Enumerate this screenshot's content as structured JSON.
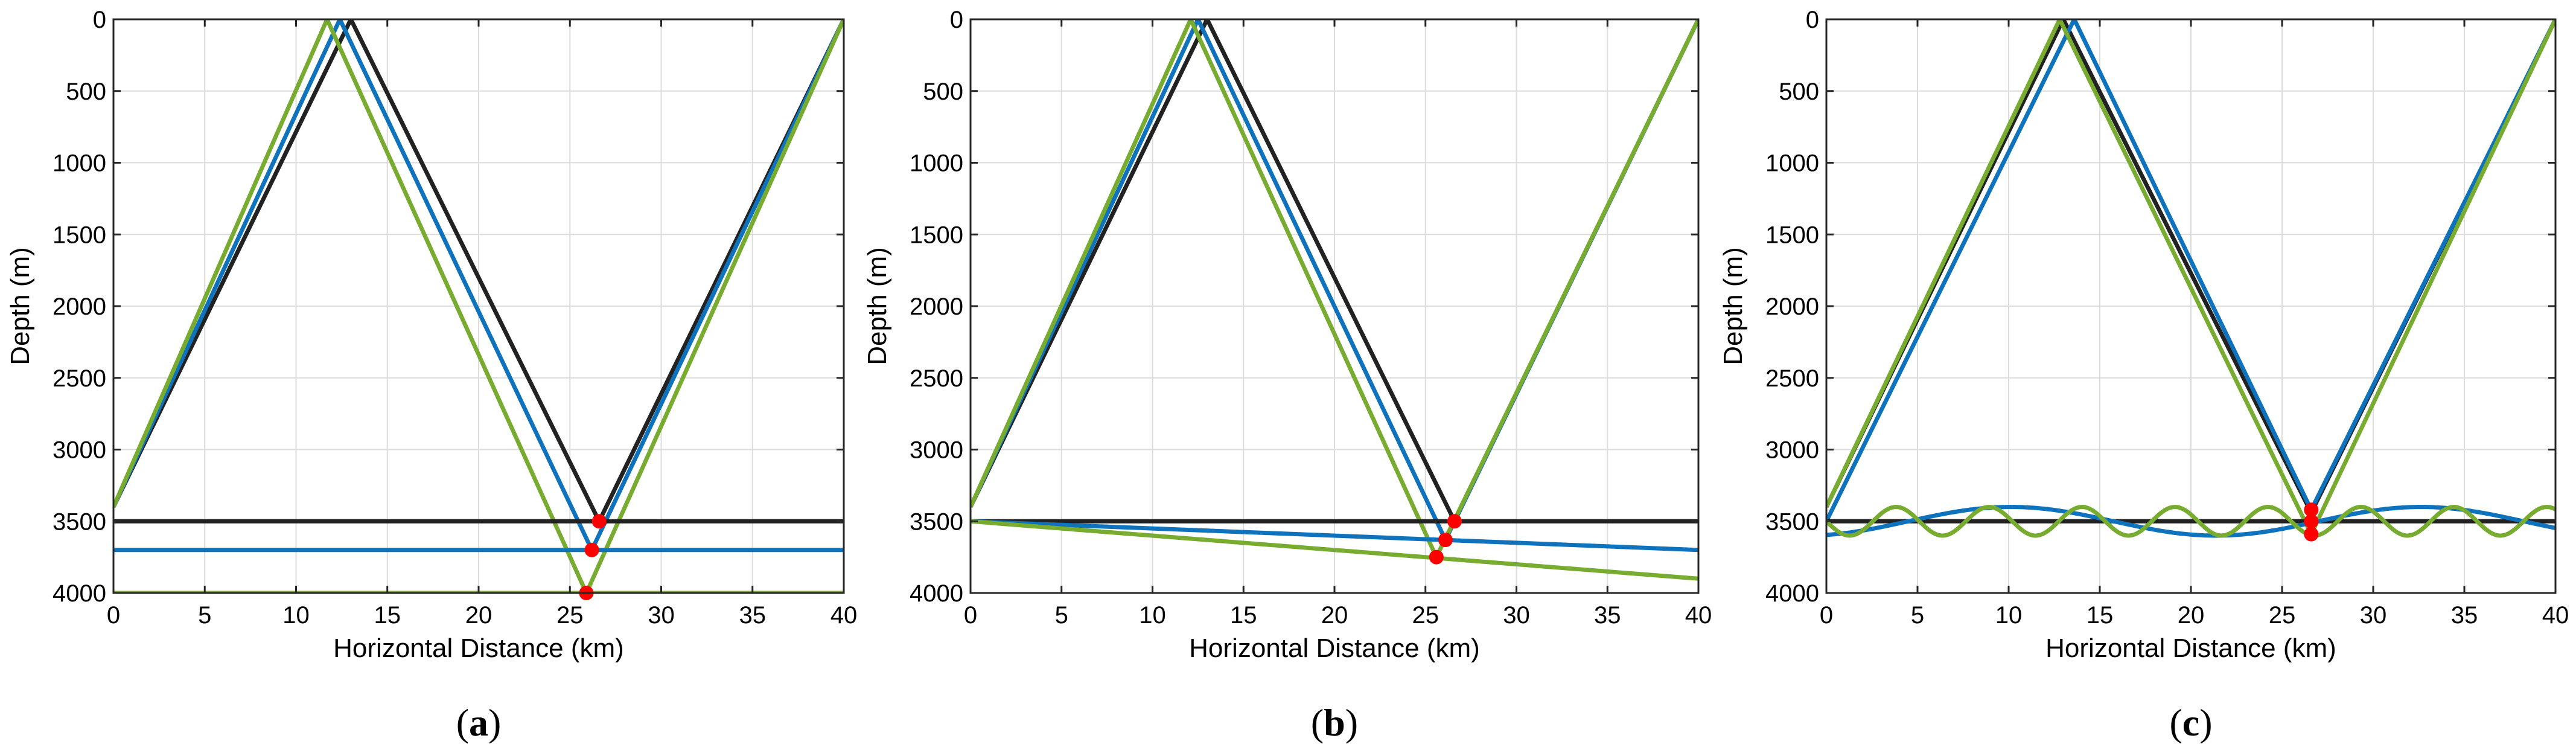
{
  "chart_data": [
    {
      "type": "line",
      "panel_label": "a",
      "xlabel": "Horizontal Distance (km)",
      "ylabel": "Depth (m)",
      "xlim": [
        0,
        40
      ],
      "ylim": [
        0,
        4000
      ],
      "y_reversed": true,
      "xticks": [
        "0",
        "5",
        "10",
        "15",
        "20",
        "25",
        "30",
        "35",
        "40"
      ],
      "yticks": [
        "0",
        "500",
        "1000",
        "1500",
        "2000",
        "2500",
        "3000",
        "3500",
        "4000"
      ],
      "grid": true,
      "colors": {
        "black": "#222222",
        "blue": "#0e72bd",
        "green": "#77ac30",
        "marker": "#ff0000"
      },
      "series": [
        {
          "color": "black",
          "x": [
            0,
            13.0,
            26.6,
            40
          ],
          "y": [
            3400,
            0,
            3500,
            0
          ]
        },
        {
          "color": "blue",
          "x": [
            0,
            12.4,
            26.2,
            40
          ],
          "y": [
            3400,
            0,
            3700,
            0
          ]
        },
        {
          "color": "green",
          "x": [
            0,
            11.7,
            25.9,
            40
          ],
          "y": [
            3400,
            0,
            4000,
            0
          ]
        },
        {
          "color": "black",
          "x": [
            0,
            40
          ],
          "y": [
            3500,
            3500
          ]
        },
        {
          "color": "blue",
          "x": [
            0,
            40
          ],
          "y": [
            3700,
            3700
          ]
        },
        {
          "color": "green",
          "x": [
            0,
            40
          ],
          "y": [
            4000,
            4000
          ]
        }
      ],
      "points": [
        {
          "x": 26.6,
          "y": 3500
        },
        {
          "x": 26.2,
          "y": 3700
        },
        {
          "x": 25.9,
          "y": 4000
        }
      ]
    },
    {
      "type": "line",
      "panel_label": "b",
      "xlabel": "Horizontal Distance (km)",
      "ylabel": "Depth (m)",
      "xlim": [
        0,
        40
      ],
      "ylim": [
        0,
        4000
      ],
      "y_reversed": true,
      "xticks": [
        "0",
        "5",
        "10",
        "15",
        "20",
        "25",
        "30",
        "35",
        "40"
      ],
      "yticks": [
        "0",
        "500",
        "1000",
        "1500",
        "2000",
        "2500",
        "3000",
        "3500",
        "4000"
      ],
      "grid": true,
      "colors": {
        "black": "#222222",
        "blue": "#0e72bd",
        "green": "#77ac30",
        "marker": "#ff0000"
      },
      "series": [
        {
          "color": "black",
          "x": [
            0,
            13.0,
            26.6,
            40
          ],
          "y": [
            3400,
            0,
            3500,
            0
          ]
        },
        {
          "color": "blue",
          "x": [
            0,
            12.5,
            26.1,
            40
          ],
          "y": [
            3400,
            0,
            3630,
            0
          ]
        },
        {
          "color": "green",
          "x": [
            0,
            12.1,
            25.6,
            40
          ],
          "y": [
            3400,
            0,
            3750,
            0
          ]
        },
        {
          "color": "black",
          "x": [
            0,
            40
          ],
          "y": [
            3500,
            3500
          ]
        },
        {
          "color": "blue",
          "x": [
            0,
            40
          ],
          "y": [
            3500,
            3700
          ]
        },
        {
          "color": "green",
          "x": [
            0,
            40
          ],
          "y": [
            3500,
            3900
          ]
        }
      ],
      "points": [
        {
          "x": 26.6,
          "y": 3500
        },
        {
          "x": 26.1,
          "y": 3630
        },
        {
          "x": 25.6,
          "y": 3750
        }
      ]
    },
    {
      "type": "line",
      "panel_label": "c",
      "xlabel": "Horizontal Distance (km)",
      "ylabel": "Depth (m)",
      "xlim": [
        0,
        40
      ],
      "ylim": [
        0,
        4000
      ],
      "y_reversed": true,
      "xticks": [
        "0",
        "5",
        "10",
        "15",
        "20",
        "25",
        "30",
        "35",
        "40"
      ],
      "yticks": [
        "0",
        "500",
        "1000",
        "1500",
        "2000",
        "2500",
        "3000",
        "3500",
        "4000"
      ],
      "grid": true,
      "colors": {
        "black": "#222222",
        "blue": "#0e72bd",
        "green": "#77ac30",
        "marker": "#ff0000"
      },
      "series": [
        {
          "color": "black",
          "x": [
            0,
            13.0,
            26.6,
            40
          ],
          "y": [
            3400,
            0,
            3440,
            0
          ]
        },
        {
          "color": "blue",
          "x": [
            0,
            13.6,
            26.6,
            40
          ],
          "y": [
            3500,
            0,
            3420,
            0
          ]
        },
        {
          "color": "green",
          "x": [
            0,
            12.8,
            26.6,
            40
          ],
          "y": [
            3400,
            0,
            3590,
            0
          ]
        },
        {
          "color": "black",
          "x": [
            0,
            40
          ],
          "y": [
            3500,
            3500
          ]
        },
        {
          "color": "blue",
          "wave": {
            "base": 3500,
            "amplitude": 100,
            "period": 22.5,
            "phase": 0.3
          }
        },
        {
          "color": "green",
          "wave": {
            "base": 3500,
            "amplitude": 100,
            "period": 5.1,
            "phase": 0.0
          }
        }
      ],
      "points": [
        {
          "x": 26.6,
          "y": 3420
        },
        {
          "x": 26.6,
          "y": 3500
        },
        {
          "x": 26.6,
          "y": 3590
        }
      ]
    }
  ]
}
